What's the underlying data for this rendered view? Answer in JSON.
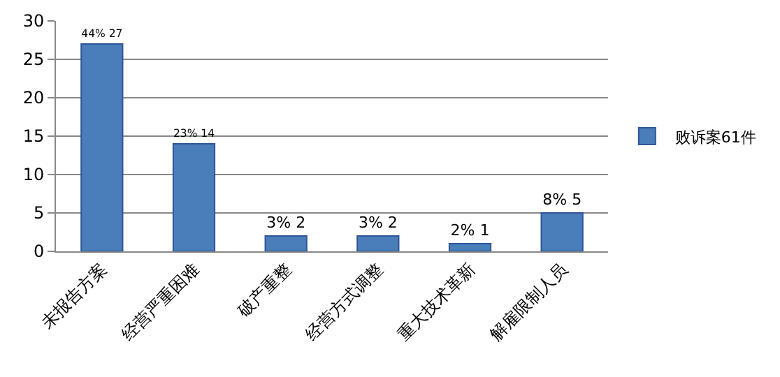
{
  "chart_data": {
    "type": "bar",
    "categories": [
      "未报告方案",
      "经营严重困难",
      "破产重整",
      "经营方式调整",
      "重大技术革新",
      "解雇限制人员"
    ],
    "series": [
      {
        "name": "败诉案61件",
        "color": "#4a7ebb",
        "values": [
          27,
          14,
          2,
          2,
          1,
          5
        ],
        "value_labels": [
          "44% 27",
          "23% 14",
          "3% 2",
          "3% 2",
          "2% 1",
          "8% 5"
        ]
      }
    ],
    "ylim": [
      0,
      30
    ],
    "yticks": [
      0,
      5,
      10,
      15,
      20,
      25,
      30
    ],
    "grid": "y",
    "legend": "right"
  }
}
